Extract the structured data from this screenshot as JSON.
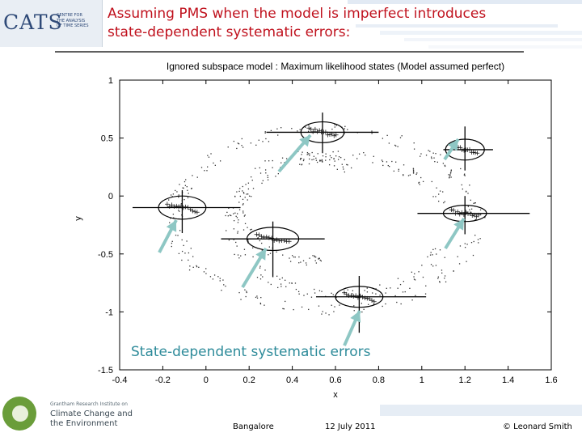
{
  "slide": {
    "title_line1": "Assuming PMS when the model is imperfect introduces",
    "title_line2": "state-dependent systematic errors:",
    "overlay_label": "State-dependent systematic errors",
    "footer_location": "Bangalore",
    "footer_date": "12 July 2011",
    "footer_author": "© Leonard Smith",
    "title_color": "#c0121e",
    "overlay_color": "#2e8b9a",
    "arrow_color": "#8ec7c4"
  },
  "logos": {
    "cats": "CATS",
    "cats_subtitle": [
      "CENTRE FOR",
      "THE ANALYSIS",
      "OF TIME SERIES"
    ],
    "grantham_line1": "Grantham Research Institute on",
    "grantham_line2": "Climate Change and",
    "grantham_line3": "the Environment"
  },
  "chart_data": {
    "type": "scatter",
    "title": "Ignored subspace model : Maximum likelihood states (Model assumed perfect)",
    "xlabel": "x",
    "ylabel": "y",
    "xlim": [
      -0.4,
      1.6
    ],
    "ylim": [
      -1.5,
      1
    ],
    "xticks": [
      "-0.4",
      "-0.2",
      "0",
      "0.2",
      "0.4",
      "0.6",
      "0.8",
      "1",
      "1.2",
      "1.4",
      "1.6"
    ],
    "yticks": [
      "-1.5",
      "-1",
      "-0.5",
      "0",
      "0.5",
      "1"
    ],
    "grid": false,
    "clusters": [
      {
        "center": [
          0.54,
          0.55
        ],
        "rx": 0.1,
        "ry": 0.09,
        "hline": [
          0.28,
          0.8
        ],
        "vline": [
          0.37,
          0.72
        ]
      },
      {
        "center": [
          1.2,
          0.4
        ],
        "rx": 0.09,
        "ry": 0.09,
        "hline": [
          1.1,
          1.33
        ],
        "vline": [
          0.22,
          0.6
        ]
      },
      {
        "center": [
          -0.11,
          -0.1
        ],
        "rx": 0.11,
        "ry": 0.1,
        "hline": [
          -0.34,
          0.16
        ],
        "vline": [
          -0.32,
          0.05
        ]
      },
      {
        "center": [
          1.2,
          -0.15
        ],
        "rx": 0.1,
        "ry": 0.07,
        "hline": [
          0.98,
          1.5
        ],
        "vline": [
          -0.33,
          0.0
        ]
      },
      {
        "center": [
          0.31,
          -0.37
        ],
        "rx": 0.12,
        "ry": 0.1,
        "hline": [
          0.07,
          0.55
        ],
        "vline": [
          -0.7,
          -0.22
        ]
      },
      {
        "center": [
          0.71,
          -0.87
        ],
        "rx": 0.11,
        "ry": 0.09,
        "hline": [
          0.51,
          1.02
        ],
        "vline": [
          -1.18,
          -0.69
        ]
      }
    ],
    "attractor_dots_note": "dense dotted curves (ring / spiral) in background"
  }
}
